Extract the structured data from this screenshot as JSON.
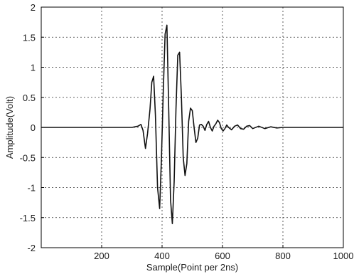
{
  "chart_data": {
    "type": "line",
    "title": "",
    "xlabel": "Sample(Point per 2ns)",
    "ylabel": "Amplitude(Volt)",
    "xlim": [
      0,
      1000
    ],
    "ylim": [
      -2,
      2
    ],
    "x_ticks": [
      200,
      400,
      600,
      800,
      1000
    ],
    "y_ticks": [
      -2,
      -1.5,
      -1,
      -0.5,
      0,
      0.5,
      1,
      1.5,
      2
    ],
    "x_tick_labels": [
      "200",
      "400",
      "600",
      "800",
      "1000"
    ],
    "y_tick_labels": [
      "-2",
      "-1.5",
      "-1",
      "-0.5",
      "0",
      "0.5",
      "1",
      "1.5",
      "2"
    ],
    "grid": true,
    "grid_style": "dashed",
    "line_color": "#111111",
    "series": [
      {
        "x": [
          0,
          50,
          100,
          150,
          200,
          250,
          300,
          320,
          330,
          337,
          345,
          352,
          360,
          366,
          372,
          378,
          385,
          392,
          398,
          404,
          410,
          416,
          422,
          428,
          434,
          440,
          446,
          452,
          458,
          464,
          470,
          476,
          482,
          488,
          494,
          500,
          506,
          512,
          518,
          524,
          530,
          536,
          542,
          548,
          554,
          560,
          566,
          572,
          578,
          584,
          590,
          596,
          602,
          608,
          614,
          620,
          630,
          640,
          650,
          660,
          670,
          680,
          690,
          700,
          720,
          740,
          760,
          780,
          800,
          850,
          900,
          950,
          1000
        ],
        "y": [
          0,
          0,
          0,
          0,
          0,
          0,
          0,
          0.02,
          0.05,
          -0.05,
          -0.35,
          -0.1,
          0.3,
          0.75,
          0.85,
          0.2,
          -1.0,
          -1.35,
          -0.5,
          0.6,
          1.55,
          1.7,
          0.3,
          -1.2,
          -1.6,
          -0.9,
          0.3,
          1.2,
          1.25,
          0.5,
          -0.5,
          -0.8,
          -0.6,
          0.1,
          0.32,
          0.28,
          0.0,
          -0.25,
          -0.18,
          0.04,
          0.05,
          0.02,
          -0.05,
          0.05,
          0.1,
          0.0,
          -0.06,
          0.02,
          0.06,
          0.12,
          0.08,
          -0.02,
          -0.06,
          -0.02,
          0.04,
          0.0,
          -0.04,
          0.02,
          0.04,
          -0.02,
          -0.03,
          0.02,
          0.03,
          -0.02,
          0.02,
          -0.02,
          0.01,
          -0.01,
          0,
          0,
          0,
          0,
          0
        ]
      }
    ]
  }
}
